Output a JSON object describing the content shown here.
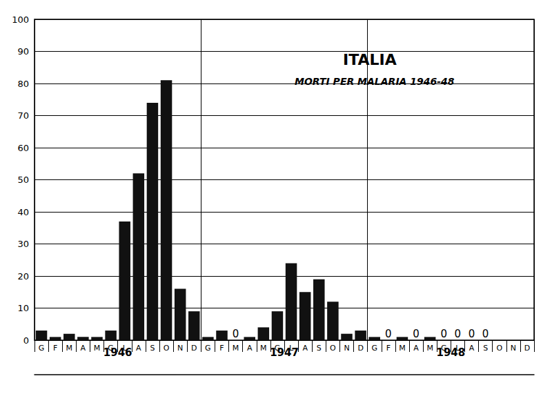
{
  "chart_data": {
    "type": "bar",
    "title": "ITALIA",
    "subtitle": "MORTI PER MALARIA 1946-48",
    "categories": [
      "G",
      "F",
      "M",
      "A",
      "M",
      "G",
      "L",
      "A",
      "S",
      "O",
      "N",
      "D",
      "G",
      "F",
      "M",
      "A",
      "M",
      "G",
      "L",
      "A",
      "S",
      "O",
      "N",
      "D",
      "G",
      "F",
      "M",
      "A",
      "M",
      "G",
      "L",
      "A",
      "S",
      "O",
      "N",
      "D"
    ],
    "groups": [
      "1946",
      "1947",
      "1948"
    ],
    "values": [
      3,
      1,
      2,
      1,
      1,
      3,
      37,
      52,
      74,
      81,
      16,
      9,
      1,
      3,
      0,
      1,
      4,
      9,
      24,
      15,
      19,
      12,
      2,
      3,
      1,
      0,
      1,
      0,
      1,
      0,
      0,
      0,
      0,
      null,
      null,
      null
    ],
    "value_labels": [
      null,
      null,
      null,
      null,
      null,
      null,
      null,
      null,
      null,
      null,
      null,
      null,
      null,
      null,
      "0",
      null,
      null,
      null,
      null,
      null,
      null,
      null,
      null,
      null,
      null,
      "0",
      null,
      "0",
      null,
      "0",
      "0",
      "0",
      "0",
      null,
      null,
      null
    ],
    "color": "#111111",
    "ylim": [
      0,
      100
    ],
    "yticks": [
      0,
      10,
      20,
      30,
      40,
      50,
      60,
      70,
      80,
      90,
      100
    ],
    "grid": true
  }
}
